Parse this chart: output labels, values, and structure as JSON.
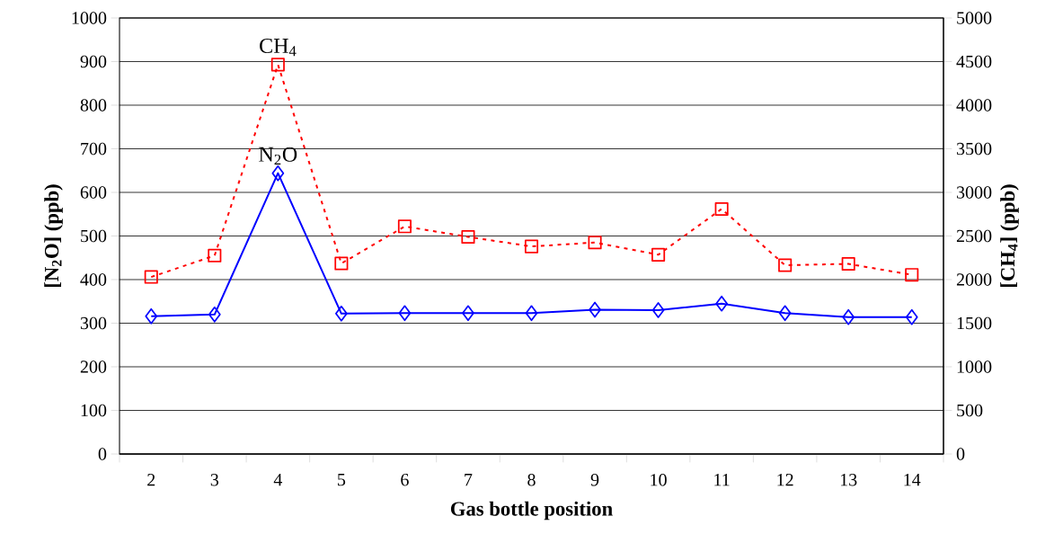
{
  "chart_data": {
    "type": "line",
    "xlabel": "Gas bottle position",
    "ylabel": "[N$_{2}$O] (ppb)",
    "y2label": "[CH$_{4}$] (ppb)",
    "categories": [
      "2",
      "3",
      "4",
      "5",
      "6",
      "7",
      "8",
      "9",
      "10",
      "11",
      "12",
      "13",
      "14"
    ],
    "series": [
      {
        "name": "N$_{2}$O",
        "color": "#0000ff",
        "marker": "diamond",
        "line_style": "solid",
        "values": [
          316,
          320,
          644,
          322,
          323,
          323,
          323,
          331,
          330,
          345,
          323,
          314,
          314
        ]
      },
      {
        "name": "CH$_{4}$",
        "color": "#ff0000",
        "marker": "square",
        "line_style": "dotted",
        "axis": "y2",
        "values": [
          2030,
          2275,
          4465,
          2185,
          2610,
          2490,
          2380,
          2425,
          2285,
          2810,
          2165,
          2180,
          2055
        ]
      }
    ],
    "ylim": [
      0,
      1000
    ],
    "yticks": [
      0,
      100,
      200,
      300,
      400,
      500,
      600,
      700,
      800,
      900,
      1000
    ],
    "y2lim": [
      0,
      5000
    ],
    "y2ticks": [
      0,
      500,
      1000,
      1500,
      2000,
      2500,
      3000,
      3500,
      4000,
      4500,
      5000
    ],
    "grid": "y"
  }
}
